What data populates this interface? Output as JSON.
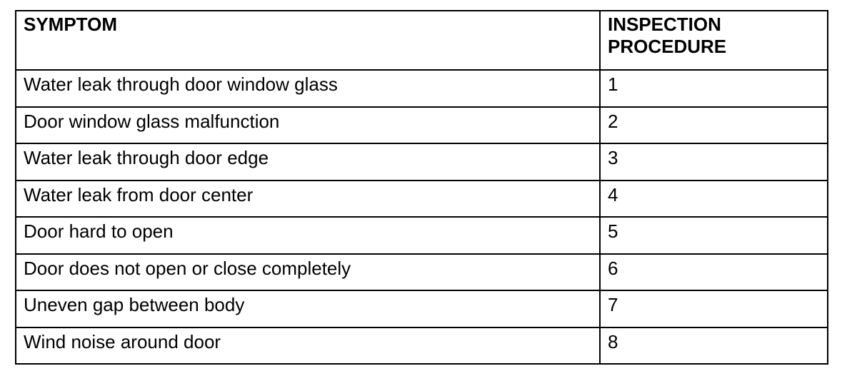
{
  "table": {
    "headers": [
      "SYMPTOM",
      "INSPECTION PROCEDURE"
    ],
    "rows": [
      [
        "Water leak through door window glass",
        "1"
      ],
      [
        "Door window glass malfunction",
        "2"
      ],
      [
        "Water leak through door edge",
        "3"
      ],
      [
        "Water leak from door center",
        "4"
      ],
      [
        "Door hard to open",
        "5"
      ],
      [
        "Door does not open or close completely",
        "6"
      ],
      [
        "Uneven gap between body",
        "7"
      ],
      [
        "Wind noise around door",
        "8"
      ]
    ]
  }
}
